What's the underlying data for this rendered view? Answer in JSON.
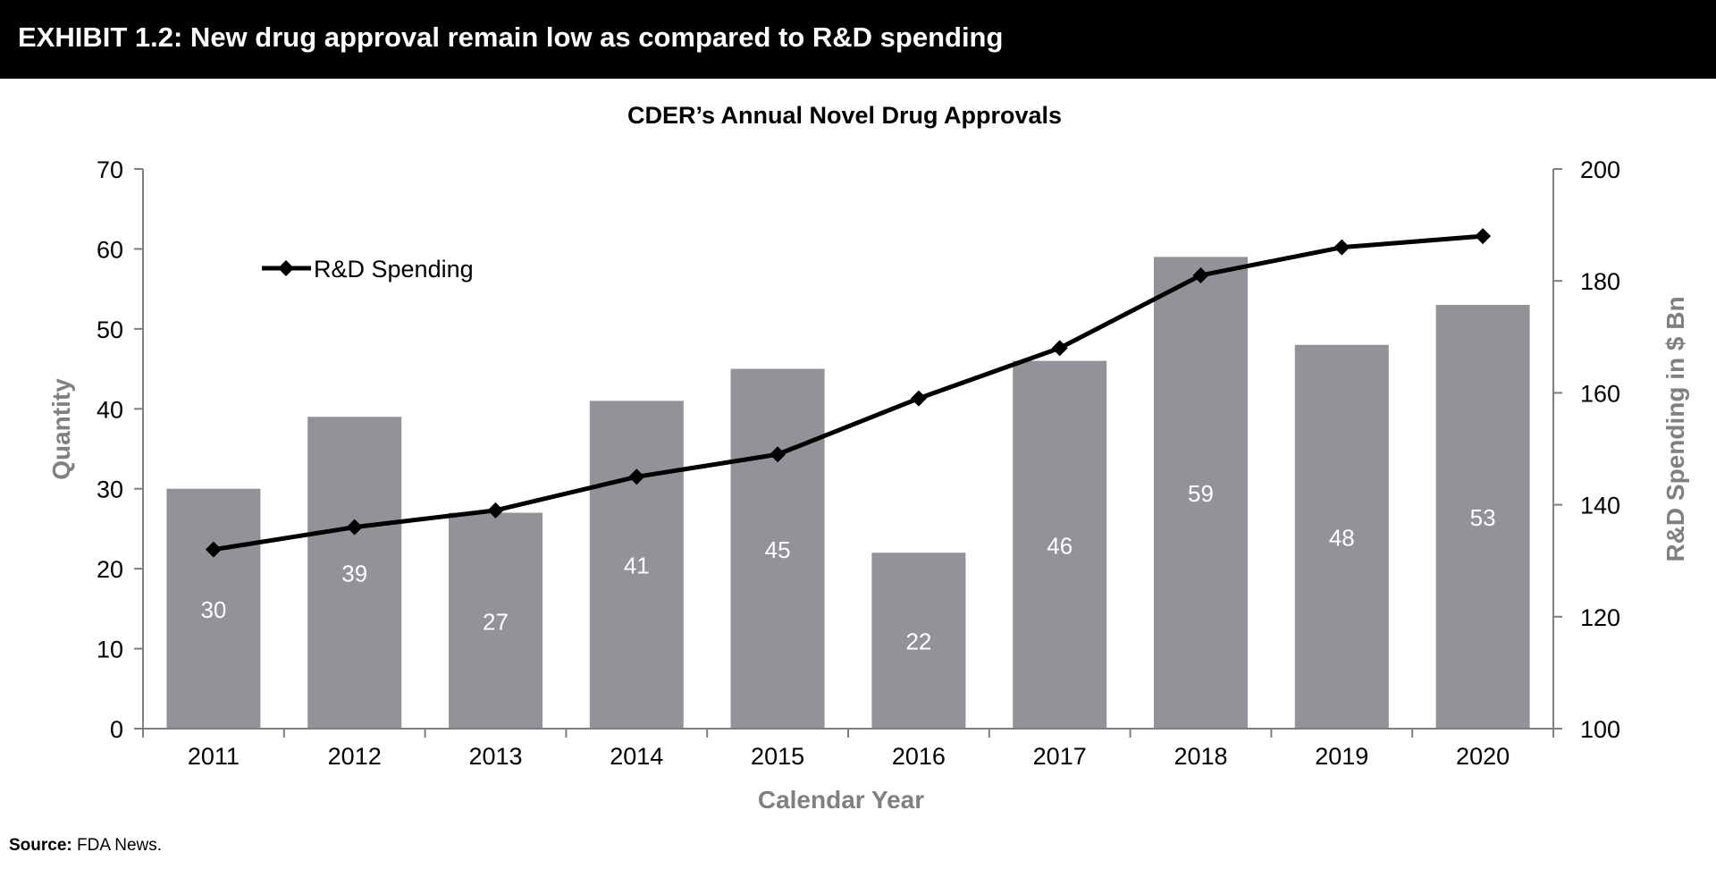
{
  "exhibit": {
    "title": "EXHIBIT 1.2: New drug approval remain low as compared to R&D spending"
  },
  "source": {
    "label": "Source:",
    "text": "FDA News."
  },
  "colors": {
    "header_bg": "#000000",
    "bar": "#939298",
    "line": "#000000",
    "axis_title": "#808080"
  },
  "chart_data": {
    "type": "bar",
    "title": "CDER’s Annual Novel Drug Approvals",
    "xlabel": "Calendar Year",
    "ylabel": "Quantity",
    "y2label": "R&D Spending in $ Bn",
    "categories": [
      "2011",
      "2012",
      "2013",
      "2014",
      "2015",
      "2016",
      "2017",
      "2018",
      "2019",
      "2020"
    ],
    "series": [
      {
        "type": "bar",
        "axis": "left",
        "values": [
          30,
          39,
          27,
          41,
          45,
          22,
          46,
          59,
          48,
          53
        ],
        "data_labels": [
          "30",
          "39",
          "27",
          "41",
          "45",
          "22",
          "46",
          "59",
          "48",
          "53"
        ]
      },
      {
        "type": "line",
        "name": "R&D Spending",
        "axis": "right",
        "marker": "diamond",
        "values": [
          132,
          136,
          139,
          145,
          149,
          159,
          168,
          181,
          186,
          188
        ]
      }
    ],
    "ylim": [
      0,
      70
    ],
    "yticks": [
      "0",
      "10",
      "20",
      "30",
      "40",
      "50",
      "60",
      "70"
    ],
    "y2lim": [
      100,
      200
    ],
    "y2ticks": [
      "100",
      "120",
      "140",
      "160",
      "180",
      "200"
    ],
    "grid": false,
    "legend": "top-left"
  }
}
